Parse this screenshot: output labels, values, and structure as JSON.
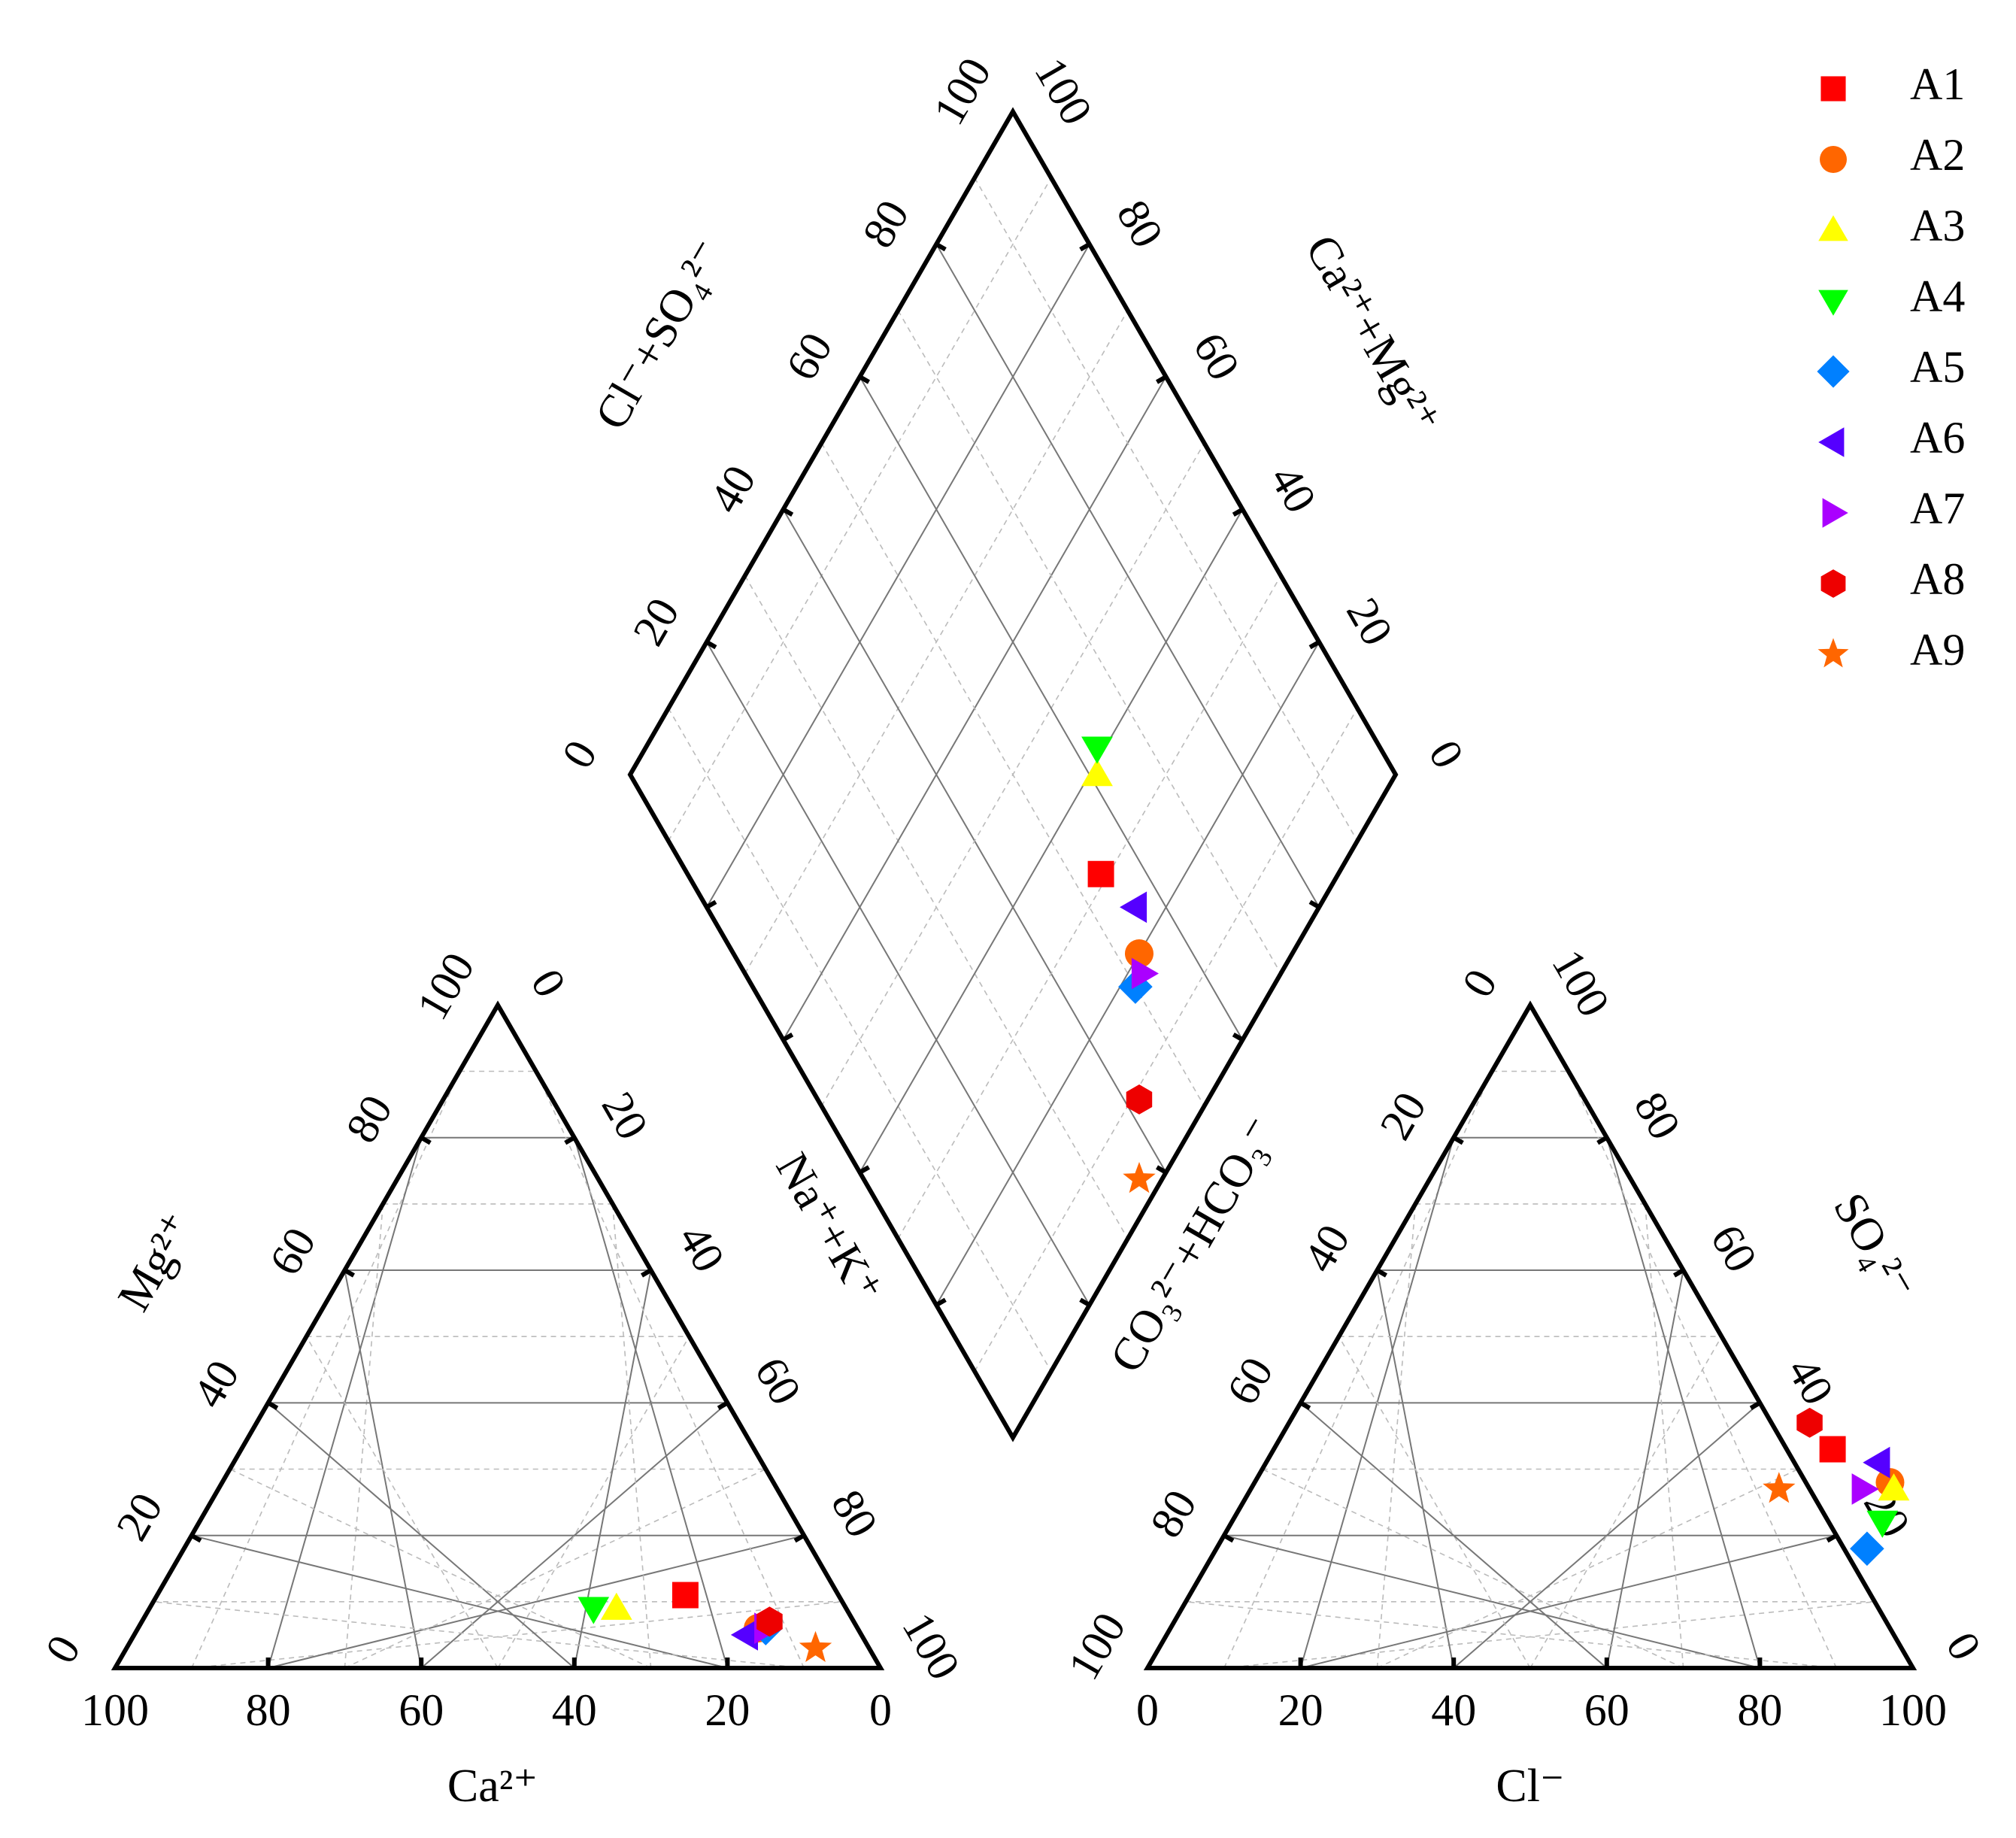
{
  "chart_data": {
    "type": "scatter",
    "chart_kind": "piper-diagram",
    "title": "",
    "grid": true,
    "legend_position": "top-right",
    "tick_values": [
      0,
      20,
      40,
      60,
      80,
      100
    ],
    "labels": {
      "ca": "Ca²⁺",
      "mg": "Mg²⁺",
      "na_k": "Na⁺+K⁺",
      "cl": "Cl⁻",
      "so4": "SO₄²⁻",
      "co3_hco3": "CO₃²⁻+HCO₃⁻",
      "cl_so4": "Cl⁻+SO₄²⁻",
      "ca_mg": "Ca²⁺+Mg²⁺"
    },
    "series": [
      {
        "name": "A1",
        "marker": "square",
        "color": "#ff0000",
        "cation": {
          "ca": 20,
          "mg": 11,
          "na_k": 69
        },
        "anion": {
          "cl": 73,
          "so4": 33,
          "hco3": -6
        },
        "diamond": {
          "cl_so4": 54,
          "ca_mg": 31
        }
      },
      {
        "name": "A2",
        "marker": "circle",
        "color": "#ff6600",
        "cation": {
          "ca": 13,
          "mg": 6,
          "na_k": 81
        },
        "anion": {
          "cl": 83,
          "so4": 28,
          "hco3": -11
        },
        "diamond": {
          "cl_so4": 53,
          "ca_mg": 20
        }
      },
      {
        "name": "A3",
        "marker": "triangle-up",
        "color": "#ffff00",
        "cation": {
          "ca": 30,
          "mg": 9,
          "na_k": 61
        },
        "anion": {
          "cl": 84,
          "so4": 27,
          "hco3": -11
        },
        "diamond": {
          "cl_so4": 61,
          "ca_mg": 39
        }
      },
      {
        "name": "A4",
        "marker": "triangle-down",
        "color": "#00ff00",
        "cation": {
          "ca": 33,
          "mg": 9,
          "na_k": 58
        },
        "anion": {
          "cl": 85,
          "so4": 22,
          "hco3": -7
        },
        "diamond": {
          "cl_so4": 63,
          "ca_mg": 41
        }
      },
      {
        "name": "A5",
        "marker": "diamond",
        "color": "#0080ff",
        "cation": {
          "ca": 12,
          "mg": 6,
          "na_k": 82
        },
        "anion": {
          "cl": 85,
          "so4": 18,
          "hco3": -3
        },
        "diamond": {
          "cl_so4": 50,
          "ca_mg": 18
        }
      },
      {
        "name": "A6",
        "marker": "triangle-left",
        "color": "#5500ff",
        "cation": {
          "ca": 15,
          "mg": 5,
          "na_k": 80
        },
        "anion": {
          "cl": 80,
          "so4": 31,
          "hco3": -11
        },
        "diamond": {
          "cl_so4": 56,
          "ca_mg": 24
        }
      },
      {
        "name": "A7",
        "marker": "triangle-right",
        "color": "#aa00ff",
        "cation": {
          "ca": 12,
          "mg": 6,
          "na_k": 82
        },
        "anion": {
          "cl": 80,
          "so4": 27,
          "hco3": -7
        },
        "diamond": {
          "cl_so4": 52,
          "ca_mg": 18
        }
      },
      {
        "name": "A8",
        "marker": "hexagon",
        "color": "#ee0000",
        "cation": {
          "ca": 11,
          "mg": 7,
          "na_k": 82
        },
        "anion": {
          "cl": 68,
          "so4": 37,
          "hco3": -5
        },
        "diamond": {
          "cl_so4": 42,
          "ca_mg": 9
        }
      },
      {
        "name": "A9",
        "marker": "star",
        "color": "#ff6600",
        "cation": {
          "ca": 7,
          "mg": 3,
          "na_k": 90
        },
        "anion": {
          "cl": 69,
          "so4": 27,
          "hco3": 4
        },
        "diamond": {
          "cl_so4": 36,
          "ca_mg": 3
        }
      }
    ]
  }
}
